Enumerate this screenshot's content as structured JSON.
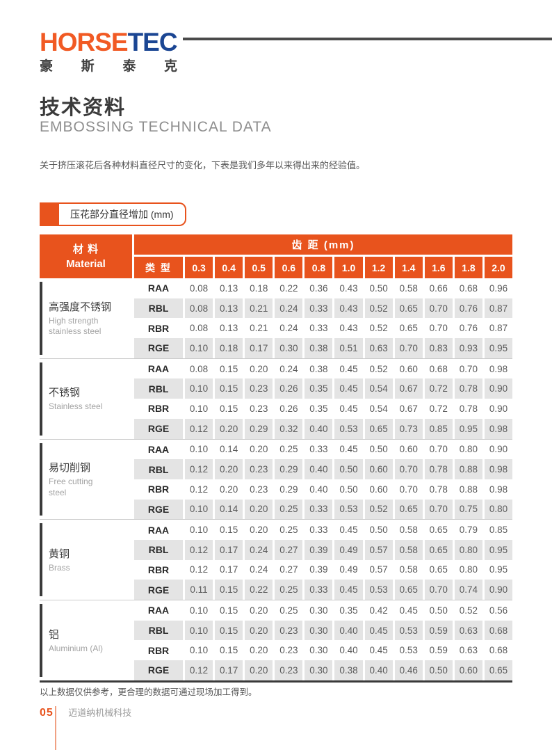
{
  "logo": {
    "word_part1": "HORSE",
    "word_part2": "TEC",
    "chinese": [
      "豪",
      "斯",
      "泰",
      "克"
    ]
  },
  "header": {
    "title_cn": "技术资料",
    "title_en": "EMBOSSING TECHNICAL DATA",
    "intro": "关于挤压滚花后各种材料直径尺寸的变化，下表是我们多年以来得出来的经验值。"
  },
  "section_label": "压花部分直径增加 (mm)",
  "colors": {
    "accent_orange": "#E8531D",
    "logo_blue": "#1B4693",
    "dark_bar": "#3A3A3A",
    "shaded_row": "#E4E4E4"
  },
  "table": {
    "material_header_cn": "材 料",
    "material_header_en": "Material",
    "pitch_header": "齿 距 (mm)",
    "type_header": "类 型",
    "pitch_columns": [
      "0.3",
      "0.4",
      "0.5",
      "0.6",
      "0.8",
      "1.0",
      "1.2",
      "1.4",
      "1.6",
      "1.8",
      "2.0"
    ],
    "groups": [
      {
        "material_cn": "高强度不锈钢",
        "material_en": "High strength<br>stainless steel",
        "rows": [
          {
            "type": "RAA",
            "values": [
              "0.08",
              "0.13",
              "0.18",
              "0.22",
              "0.36",
              "0.43",
              "0.50",
              "0.58",
              "0.66",
              "0.68",
              "0.96"
            ]
          },
          {
            "type": "RBL",
            "values": [
              "0.08",
              "0.13",
              "0.21",
              "0.24",
              "0.33",
              "0.43",
              "0.52",
              "0.65",
              "0.70",
              "0.76",
              "0.87"
            ]
          },
          {
            "type": "RBR",
            "values": [
              "0.08",
              "0.13",
              "0.21",
              "0.24",
              "0.33",
              "0.43",
              "0.52",
              "0.65",
              "0.70",
              "0.76",
              "0.87"
            ]
          },
          {
            "type": "RGE",
            "values": [
              "0.10",
              "0.18",
              "0.17",
              "0.30",
              "0.38",
              "0.51",
              "0.63",
              "0.70",
              "0.83",
              "0.93",
              "0.95"
            ]
          }
        ]
      },
      {
        "material_cn": "不锈钢",
        "material_en": "Stainless steel",
        "rows": [
          {
            "type": "RAA",
            "values": [
              "0.08",
              "0.15",
              "0.20",
              "0.24",
              "0.38",
              "0.45",
              "0.52",
              "0.60",
              "0.68",
              "0.70",
              "0.98"
            ]
          },
          {
            "type": "RBL",
            "values": [
              "0.10",
              "0.15",
              "0.23",
              "0.26",
              "0.35",
              "0.45",
              "0.54",
              "0.67",
              "0.72",
              "0.78",
              "0.90"
            ]
          },
          {
            "type": "RBR",
            "values": [
              "0.10",
              "0.15",
              "0.23",
              "0.26",
              "0.35",
              "0.45",
              "0.54",
              "0.67",
              "0.72",
              "0.78",
              "0.90"
            ]
          },
          {
            "type": "RGE",
            "values": [
              "0.12",
              "0.20",
              "0.29",
              "0.32",
              "0.40",
              "0.53",
              "0.65",
              "0.73",
              "0.85",
              "0.95",
              "0.98"
            ]
          }
        ]
      },
      {
        "material_cn": "易切削钢",
        "material_en": "Free cutting<br>steel",
        "rows": [
          {
            "type": "RAA",
            "values": [
              "0.10",
              "0.14",
              "0.20",
              "0.25",
              "0.33",
              "0.45",
              "0.50",
              "0.60",
              "0.70",
              "0.80",
              "0.90"
            ]
          },
          {
            "type": "RBL",
            "values": [
              "0.12",
              "0.20",
              "0.23",
              "0.29",
              "0.40",
              "0.50",
              "0.60",
              "0.70",
              "0.78",
              "0.88",
              "0.98"
            ]
          },
          {
            "type": "RBR",
            "values": [
              "0.12",
              "0.20",
              "0.23",
              "0.29",
              "0.40",
              "0.50",
              "0.60",
              "0.70",
              "0.78",
              "0.88",
              "0.98"
            ]
          },
          {
            "type": "RGE",
            "values": [
              "0.10",
              "0.14",
              "0.20",
              "0.25",
              "0.33",
              "0.53",
              "0.52",
              "0.65",
              "0.70",
              "0.75",
              "0.80"
            ]
          }
        ]
      },
      {
        "material_cn": "黄铜",
        "material_en": "Brass",
        "rows": [
          {
            "type": "RAA",
            "values": [
              "0.10",
              "0.15",
              "0.20",
              "0.25",
              "0.33",
              "0.45",
              "0.50",
              "0.58",
              "0.65",
              "0.79",
              "0.85"
            ]
          },
          {
            "type": "RBL",
            "values": [
              "0.12",
              "0.17",
              "0.24",
              "0.27",
              "0.39",
              "0.49",
              "0.57",
              "0.58",
              "0.65",
              "0.80",
              "0.95"
            ]
          },
          {
            "type": "RBR",
            "values": [
              "0.12",
              "0.17",
              "0.24",
              "0.27",
              "0.39",
              "0.49",
              "0.57",
              "0.58",
              "0.65",
              "0.80",
              "0.95"
            ]
          },
          {
            "type": "RGE",
            "values": [
              "0.11",
              "0.15",
              "0.22",
              "0.25",
              "0.33",
              "0.45",
              "0.53",
              "0.65",
              "0.70",
              "0.74",
              "0.90"
            ]
          }
        ]
      },
      {
        "material_cn": "铝",
        "material_en": "Aluminium (Al)",
        "rows": [
          {
            "type": "RAA",
            "values": [
              "0.10",
              "0.15",
              "0.20",
              "0.25",
              "0.30",
              "0.35",
              "0.42",
              "0.45",
              "0.50",
              "0.52",
              "0.56"
            ]
          },
          {
            "type": "RBL",
            "values": [
              "0.10",
              "0.15",
              "0.20",
              "0.23",
              "0.30",
              "0.40",
              "0.45",
              "0.53",
              "0.59",
              "0.63",
              "0.68"
            ]
          },
          {
            "type": "RBR",
            "values": [
              "0.10",
              "0.15",
              "0.20",
              "0.23",
              "0.30",
              "0.40",
              "0.45",
              "0.53",
              "0.59",
              "0.63",
              "0.68"
            ]
          },
          {
            "type": "RGE",
            "values": [
              "0.12",
              "0.17",
              "0.20",
              "0.23",
              "0.30",
              "0.38",
              "0.40",
              "0.46",
              "0.50",
              "0.60",
              "0.65"
            ]
          }
        ]
      }
    ]
  },
  "footer": {
    "note": "以上数据仅供参考，更合理的数据可通过现场加工得到。",
    "page_number": "05",
    "company": "迈道纳机械科技"
  }
}
